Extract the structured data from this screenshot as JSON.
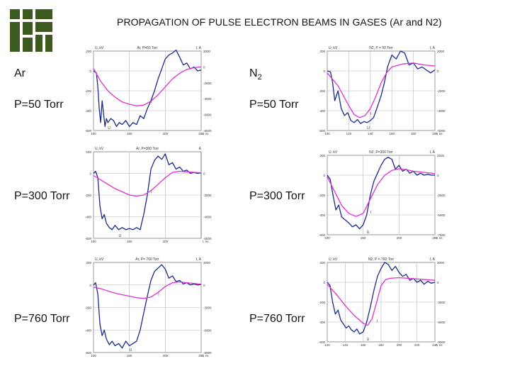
{
  "title": "PROPAGATION OF PULSE ELECTRON BEAMS IN GASES (Ar and N2)",
  "labels": {
    "gas1": "Ar",
    "gas2_main": "N",
    "gas2_sub": "2",
    "p50_left": "P=50 Torr",
    "p300_left": "P=300 Torr",
    "p760_left": "P=760 Torr",
    "p50_right": "P=50 Torr",
    "p300_right": "P=300 Torr",
    "p760_right": "P=760 Torr"
  },
  "colors": {
    "voltage": "#1a2a8c",
    "current": "#e030d0",
    "grid": "#b8b8c8",
    "logo": "#3d5a1e"
  },
  "chart_data": [
    {
      "id": "ar50",
      "type": "line",
      "title": "Ar, P=50 Torr",
      "ylabel": "U, kV",
      "y2label": "I, A",
      "xlabel": "t, ns",
      "xlim": [
        100,
        250
      ],
      "ylim": [
        -600,
        200
      ],
      "y2lim": [
        -8000,
        2000
      ],
      "xticks": [
        100,
        150,
        200,
        250
      ],
      "yticks": [
        200,
        0,
        -200,
        -400,
        -600
      ],
      "y2ticks": [
        2000,
        0,
        -2000,
        -4000,
        -6000,
        -8000
      ],
      "annotations": [
        "U",
        "I"
      ],
      "series": [
        {
          "name": "U",
          "axis": "left",
          "x": [
            100,
            104,
            106,
            108,
            110,
            112,
            114,
            116,
            118,
            120,
            124,
            128,
            132,
            136,
            140,
            145,
            150,
            155,
            160,
            165,
            170,
            175,
            180,
            185,
            190,
            195,
            200,
            205,
            210,
            215,
            220,
            225,
            230,
            235,
            240,
            245,
            250
          ],
          "y": [
            0,
            -20,
            -160,
            -380,
            -520,
            -300,
            -430,
            -560,
            -480,
            -520,
            -480,
            -500,
            -560,
            -520,
            -540,
            -500,
            -560,
            -520,
            -540,
            -450,
            -480,
            -380,
            -300,
            -200,
            -80,
            20,
            120,
            160,
            180,
            210,
            140,
            60,
            80,
            20,
            40,
            0,
            10
          ]
        },
        {
          "name": "I",
          "axis": "right",
          "x": [
            100,
            110,
            120,
            130,
            140,
            150,
            160,
            170,
            180,
            190,
            200,
            210,
            220,
            230,
            240,
            250
          ],
          "y": [
            -200,
            -1800,
            -3000,
            -3800,
            -4400,
            -4700,
            -4900,
            -4800,
            -4300,
            -3500,
            -2500,
            -1500,
            -800,
            -300,
            -100,
            0
          ]
        }
      ]
    },
    {
      "id": "n250",
      "type": "line",
      "title": "N2, P = 50 Torr",
      "ylabel": "U, kV",
      "y2label": "I, A",
      "xlabel": "t, ns",
      "xlim": [
        100,
        200
      ],
      "ylim": [
        -600,
        200
      ],
      "y2lim": [
        -6000,
        2000
      ],
      "xticks": [
        100,
        120,
        140,
        160,
        180,
        200
      ],
      "yticks": [
        200,
        0,
        -200,
        -400,
        -600
      ],
      "y2ticks": [
        2000,
        0,
        -2000,
        -4000,
        -6000
      ],
      "annotations": [
        "U",
        "I"
      ],
      "series": [
        {
          "name": "U",
          "axis": "left",
          "x": [
            100,
            103,
            105,
            107,
            110,
            113,
            116,
            119,
            122,
            125,
            128,
            131,
            134,
            137,
            140,
            143,
            146,
            150,
            153,
            156,
            160,
            164,
            168,
            172,
            176,
            180,
            184,
            188,
            192,
            196,
            200
          ],
          "y": [
            0,
            -10,
            -120,
            -300,
            -200,
            -380,
            -450,
            -420,
            -500,
            -520,
            -490,
            -530,
            -510,
            -520,
            -500,
            -470,
            -380,
            -250,
            -120,
            40,
            160,
            120,
            200,
            180,
            60,
            80,
            20,
            40,
            10,
            -20,
            10
          ]
        },
        {
          "name": "I",
          "axis": "right",
          "x": [
            100,
            110,
            120,
            125,
            130,
            135,
            140,
            145,
            150,
            155,
            160,
            170,
            180,
            190,
            200
          ],
          "y": [
            -200,
            -1500,
            -3500,
            -4400,
            -4700,
            -4500,
            -3800,
            -2600,
            -1200,
            -200,
            400,
            700,
            800,
            600,
            500
          ]
        }
      ]
    },
    {
      "id": "ar300",
      "type": "line",
      "title": "Ar, P=300 Torr",
      "ylabel": "U, kV",
      "y2label": "A",
      "xlabel": "t, ns",
      "xlim": [
        100,
        250
      ],
      "ylim": [
        -600,
        200
      ],
      "y2lim": [
        -6000,
        2000
      ],
      "xticks": [
        100,
        150,
        200
      ],
      "yticks": [
        200,
        0,
        -200,
        -400,
        -600
      ],
      "y2ticks": [
        0,
        -2000,
        -4000,
        -6000
      ],
      "annotations": [
        "U",
        "I"
      ],
      "series": [
        {
          "name": "U",
          "axis": "left",
          "x": [
            100,
            103,
            106,
            109,
            112,
            115,
            118,
            122,
            126,
            130,
            135,
            140,
            145,
            150,
            155,
            160,
            165,
            170,
            175,
            180,
            185,
            190,
            195,
            200,
            205,
            210,
            215,
            220,
            225,
            230,
            235,
            240,
            245,
            250
          ],
          "y": [
            0,
            20,
            -40,
            -300,
            -420,
            -380,
            -460,
            -500,
            -520,
            -480,
            -520,
            -500,
            -520,
            -510,
            -520,
            -500,
            -520,
            -380,
            -200,
            40,
            120,
            160,
            130,
            180,
            80,
            100,
            40,
            60,
            20,
            30,
            0,
            10,
            0,
            5
          ]
        },
        {
          "name": "I",
          "axis": "right",
          "x": [
            100,
            110,
            120,
            130,
            140,
            150,
            160,
            170,
            180,
            190,
            200,
            210,
            220,
            230,
            240,
            250
          ],
          "y": [
            -200,
            -600,
            -1000,
            -1400,
            -1700,
            -2000,
            -2100,
            -2000,
            -1600,
            -1000,
            -400,
            100,
            200,
            150,
            100,
            50
          ]
        }
      ]
    },
    {
      "id": "n2300",
      "type": "line",
      "title": "N2, P=300 Torr",
      "ylabel": "U, kV",
      "y2label": "I, A",
      "xlabel": "t, ns",
      "xlim": [
        100,
        250
      ],
      "ylim": [
        -600,
        200
      ],
      "y2lim": [
        -7500,
        2500
      ],
      "xticks": [
        100,
        150,
        200,
        250
      ],
      "yticks": [
        200,
        0,
        -200,
        -400,
        -600
      ],
      "y2ticks": [
        2500,
        0,
        -2500,
        -5000,
        -7500
      ],
      "annotations": [
        "U",
        "I"
      ],
      "series": [
        {
          "name": "U",
          "axis": "left",
          "x": [
            100,
            104,
            108,
            112,
            116,
            120,
            125,
            130,
            135,
            140,
            145,
            150,
            155,
            160,
            165,
            170,
            175,
            180,
            185,
            190,
            195,
            200,
            205,
            210,
            215,
            220,
            225,
            230,
            235,
            240,
            245,
            250
          ],
          "y": [
            0,
            -40,
            -200,
            -350,
            -300,
            -420,
            -450,
            -480,
            -520,
            -500,
            -540,
            -500,
            -400,
            -200,
            -60,
            20,
            100,
            160,
            180,
            160,
            60,
            100,
            40,
            60,
            20,
            40,
            0,
            20,
            0,
            10,
            0,
            0
          ]
        },
        {
          "name": "I",
          "axis": "right",
          "x": [
            100,
            110,
            120,
            130,
            140,
            150,
            160,
            170,
            180,
            190,
            200,
            210,
            220,
            230,
            240,
            250
          ],
          "y": [
            -200,
            -2000,
            -3800,
            -4800,
            -5200,
            -4800,
            -3000,
            -1200,
            0,
            600,
            800,
            700,
            500,
            400,
            300,
            200
          ]
        }
      ]
    },
    {
      "id": "ar760",
      "type": "line",
      "title": "Ar, P= 760 Torr",
      "ylabel": "U, kV",
      "y2label": "I, A",
      "xlabel": "t, ns",
      "xlim": [
        100,
        250
      ],
      "ylim": [
        -600,
        200
      ],
      "y2lim": [
        -9000,
        3000
      ],
      "xticks": [
        100,
        150,
        200,
        250
      ],
      "yticks": [
        200,
        0,
        -200,
        -400,
        -600
      ],
      "y2ticks": [
        3000,
        0,
        -3000,
        -6000,
        -9000
      ],
      "annotations": [
        "U",
        "I"
      ],
      "series": [
        {
          "name": "U",
          "axis": "left",
          "x": [
            100,
            103,
            106,
            109,
            112,
            115,
            118,
            122,
            126,
            130,
            135,
            140,
            145,
            150,
            155,
            160,
            165,
            170,
            175,
            180,
            185,
            190,
            195,
            200,
            205,
            210,
            215,
            220,
            225,
            230,
            235,
            240,
            245,
            250
          ],
          "y": [
            0,
            20,
            -80,
            -350,
            -450,
            -400,
            -480,
            -530,
            -500,
            -540,
            -520,
            -560,
            -500,
            -540,
            -520,
            -500,
            -400,
            -250,
            -100,
            40,
            120,
            150,
            180,
            140,
            60,
            80,
            30,
            40,
            10,
            20,
            0,
            10,
            0,
            5
          ]
        },
        {
          "name": "I",
          "axis": "right",
          "x": [
            100,
            110,
            120,
            130,
            140,
            150,
            160,
            170,
            180,
            190,
            200,
            210,
            220,
            230,
            240,
            250
          ],
          "y": [
            -300,
            -500,
            -800,
            -1100,
            -1300,
            -1500,
            -1700,
            -1800,
            -1600,
            -1000,
            -200,
            300,
            400,
            300,
            200,
            100
          ]
        }
      ]
    },
    {
      "id": "n2760",
      "type": "line",
      "title": "N2, P = 760 Torr",
      "ylabel": "U, kV",
      "y2label": "I, A",
      "xlabel": "t, ns",
      "xlim": [
        120,
        240
      ],
      "ylim": [
        -600,
        200
      ],
      "y2lim": [
        -9000,
        3000
      ],
      "xticks": [
        120,
        140,
        160,
        180,
        200,
        220,
        240
      ],
      "yticks": [
        200,
        0,
        -200,
        -400,
        -600
      ],
      "y2ticks": [
        3000,
        0,
        -3000,
        -6000,
        -9000
      ],
      "annotations": [
        "U",
        "I"
      ],
      "series": [
        {
          "name": "U",
          "axis": "left",
          "x": [
            120,
            123,
            126,
            129,
            132,
            135,
            138,
            141,
            144,
            147,
            150,
            153,
            156,
            160,
            164,
            168,
            172,
            176,
            180,
            184,
            188,
            192,
            196,
            200,
            204,
            208,
            212,
            216,
            220,
            224,
            228,
            232,
            236,
            240
          ],
          "y": [
            0,
            -30,
            -200,
            -320,
            -280,
            -380,
            -420,
            -460,
            -440,
            -480,
            -500,
            -470,
            -520,
            -500,
            -400,
            -250,
            -80,
            60,
            140,
            200,
            180,
            120,
            160,
            100,
            60,
            80,
            20,
            40,
            0,
            20,
            -20,
            10,
            -10,
            0
          ]
        },
        {
          "name": "I",
          "axis": "right",
          "x": [
            120,
            130,
            140,
            150,
            160,
            165,
            170,
            175,
            180,
            185,
            190,
            200,
            210,
            220,
            230,
            240
          ],
          "y": [
            -300,
            -1800,
            -3500,
            -5000,
            -6200,
            -6500,
            -5500,
            -3000,
            -500,
            400,
            600,
            700,
            600,
            500,
            400,
            300
          ]
        }
      ]
    }
  ]
}
